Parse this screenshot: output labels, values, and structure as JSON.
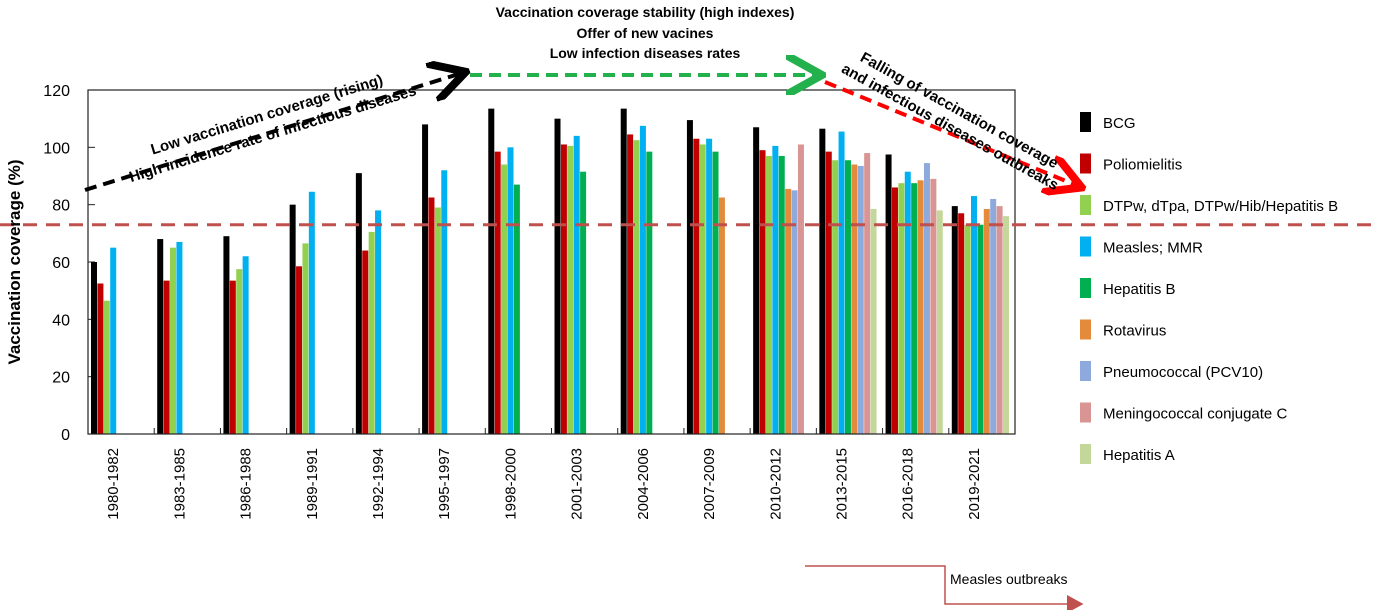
{
  "chart_data": {
    "type": "bar",
    "ylabel": "Vaccination coverage (%)",
    "ylim": [
      0,
      120
    ],
    "yticks": [
      0,
      20,
      40,
      60,
      80,
      100,
      120
    ],
    "legend_position": "right",
    "reference_line": 73,
    "categories": [
      "1980-1982",
      "1983-1985",
      "1986-1988",
      "1989-1991",
      "1992-1994",
      "1995-1997",
      "1998-2000",
      "2001-2003",
      "2004-2006",
      "2007-2009",
      "2010-2012",
      "2013-2015",
      "2016-2018",
      "2019-2021"
    ],
    "series": [
      {
        "name": "BCG",
        "color": "#000000",
        "values": [
          60,
          68,
          69,
          80,
          91,
          108,
          113.5,
          110,
          113.5,
          109.5,
          107,
          106.5,
          97.5,
          79.5
        ]
      },
      {
        "name": "Poliomielitis",
        "color": "#c00000",
        "values": [
          52.5,
          53.5,
          53.5,
          58.5,
          64,
          82.5,
          98.5,
          101,
          104.5,
          103,
          99,
          98.5,
          86,
          77
        ]
      },
      {
        "name": "DTPw, dTpa, DTPw/Hib/Hepatitis B",
        "color": "#92d050",
        "values": [
          46.5,
          65,
          57.5,
          66.5,
          70.5,
          79,
          94,
          100.5,
          102.5,
          101,
          97,
          95.5,
          87.5,
          73
        ]
      },
      {
        "name": "Measles; MMR",
        "color": "#00b0f0",
        "values": [
          65,
          67,
          62,
          84.5,
          78,
          92,
          100,
          104,
          107.5,
          103,
          100.5,
          105.5,
          91.5,
          83
        ]
      },
      {
        "name": "Hepatitis B",
        "color": "#00b050",
        "values": [
          null,
          null,
          null,
          null,
          null,
          null,
          87,
          91.5,
          98.5,
          98.5,
          97,
          95.5,
          87.5,
          73
        ]
      },
      {
        "name": "Rotavirus",
        "color": "#e38b3b",
        "values": [
          null,
          null,
          null,
          null,
          null,
          null,
          null,
          null,
          null,
          82.5,
          85.5,
          94,
          88.5,
          78.5
        ]
      },
      {
        "name": "Pneumococcal (PCV10)",
        "color": "#8ea9db",
        "values": [
          null,
          null,
          null,
          null,
          null,
          null,
          null,
          null,
          null,
          null,
          85,
          93.5,
          94.5,
          82
        ]
      },
      {
        "name": "Meningococcal conjugate C",
        "color": "#d99594",
        "values": [
          null,
          null,
          null,
          null,
          null,
          null,
          null,
          null,
          null,
          null,
          101,
          98,
          89,
          79.5
        ]
      },
      {
        "name": "Hepatitis A",
        "color": "#c4d79b",
        "values": [
          null,
          null,
          null,
          null,
          null,
          null,
          null,
          null,
          null,
          null,
          null,
          78.5,
          78,
          76
        ]
      }
    ],
    "annotations": {
      "rising": [
        "Low vaccination coverage (rising)",
        "High incidence rate of infectious diseases"
      ],
      "stable": [
        "Vaccination coverage stability (high indexes)",
        "Offer of new vacines",
        "Low infection diseases rates"
      ],
      "falling": [
        "Falling of vaccination coverage",
        "and infectious diseases outbreaks"
      ],
      "outbreaks": "Measles outbreaks"
    }
  }
}
